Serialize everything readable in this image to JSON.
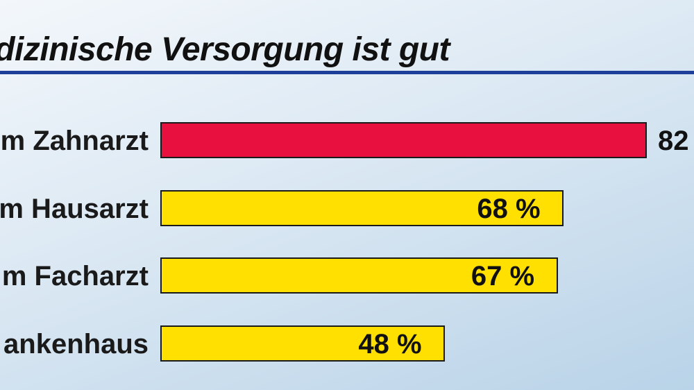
{
  "chart_data": {
    "type": "bar",
    "orientation": "horizontal",
    "title": "edizinische Versorgung ist gut",
    "categories": [
      "m Zahnarzt",
      "m Hausarzt",
      "m Facharzt",
      "ankenhaus"
    ],
    "values": [
      82,
      68,
      67,
      48
    ],
    "value_labels": [
      "82",
      "68 %",
      "67 %",
      "48 %"
    ],
    "unit": "%",
    "xlim": [
      0,
      100
    ],
    "colors": [
      "#e8103e",
      "#ffe000",
      "#ffe000",
      "#ffe000"
    ],
    "grid": false,
    "legend": "none"
  },
  "colors": {
    "title_rule": "#1d3f9a",
    "bar_border": "#1a1a1a"
  }
}
